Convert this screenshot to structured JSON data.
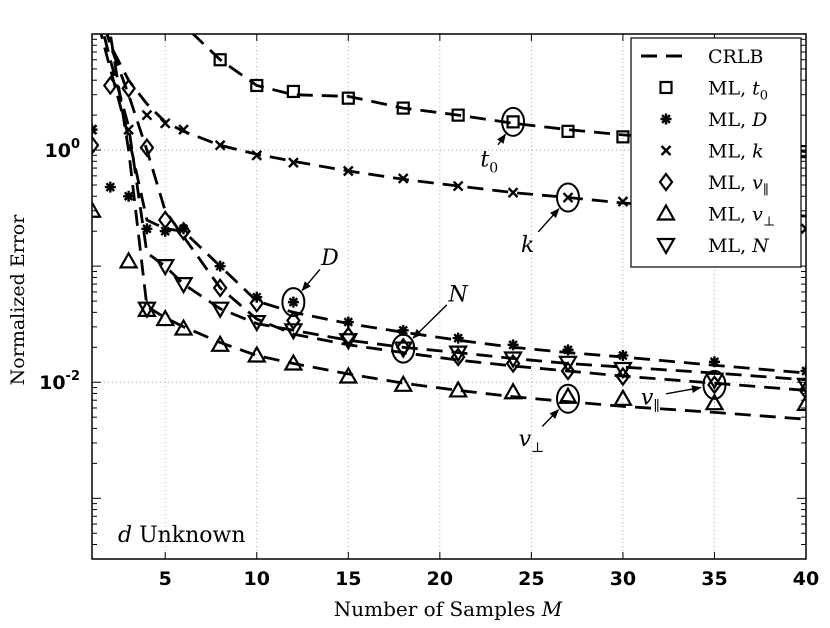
{
  "chart_data": {
    "type": "line",
    "xlabel": "Number of Samples ",
    "xlabel_var": "M",
    "ylabel": "Normalized Error",
    "xlim": [
      1,
      40
    ],
    "ylim": [
      0.0003,
      10
    ],
    "yscale": "log",
    "grid": "dotted",
    "legend_position": "top-right",
    "x_ticks": [
      5,
      10,
      15,
      20,
      25,
      30,
      35,
      40
    ],
    "y_ticks": [
      {
        "value": 1,
        "label_base": "10",
        "label_exp": "0"
      },
      {
        "value": 0.01,
        "label_base": "10",
        "label_exp": "-2"
      }
    ],
    "annotation_box": {
      "var": "d",
      "text": " Unknown"
    },
    "legend": [
      {
        "key": "crlb",
        "text": "CRLB"
      },
      {
        "key": "t0",
        "text": "ML, ",
        "var": "t",
        "sub": "0"
      },
      {
        "key": "D",
        "text": "ML, ",
        "var": "D",
        "sub": ""
      },
      {
        "key": "k",
        "text": "ML, ",
        "var": "k",
        "sub": ""
      },
      {
        "key": "vpar",
        "text": "ML, ",
        "var": "v",
        "sub": "∥"
      },
      {
        "key": "vperp",
        "text": "ML, ",
        "var": "v",
        "sub": "⊥"
      },
      {
        "key": "N",
        "text": "ML, ",
        "var": "N",
        "sub": ""
      }
    ],
    "crlb_series": [
      {
        "name": "t0",
        "x": [
          1,
          2,
          3,
          4,
          5,
          6,
          8,
          10,
          12,
          15,
          18,
          21,
          24,
          27,
          30,
          35,
          40
        ],
        "y": [
          300,
          100,
          50,
          30,
          20,
          12,
          6.0,
          3.6,
          3.0,
          2.9,
          2.3,
          2.0,
          1.7,
          1.5,
          1.35,
          1.18,
          0.97
        ]
      },
      {
        "name": "k",
        "x": [
          1,
          2,
          3,
          4,
          5,
          6,
          8,
          10,
          12,
          15,
          18,
          21,
          24,
          27,
          30,
          35,
          40
        ],
        "y": [
          30,
          8,
          4,
          2.5,
          1.75,
          1.45,
          1.1,
          0.92,
          0.8,
          0.66,
          0.56,
          0.49,
          0.43,
          0.39,
          0.35,
          0.31,
          0.27
        ]
      },
      {
        "name": "D",
        "x": [
          1,
          2,
          3,
          4,
          5,
          6,
          8,
          10,
          12,
          15,
          18,
          21,
          24,
          27,
          30,
          35,
          40
        ],
        "y": [
          20,
          5,
          1.3,
          0.25,
          0.21,
          0.2,
          0.1,
          0.05,
          0.04,
          0.032,
          0.027,
          0.023,
          0.02,
          0.018,
          0.0165,
          0.014,
          0.012
        ]
      },
      {
        "name": "N",
        "x": [
          1,
          2,
          3,
          4,
          5,
          6,
          8,
          10,
          12,
          15,
          18,
          21,
          24,
          27,
          30,
          35,
          40
        ],
        "y": [
          25,
          6,
          1.6,
          0.13,
          0.1,
          0.07,
          0.043,
          0.032,
          0.028,
          0.023,
          0.02,
          0.018,
          0.016,
          0.0145,
          0.0135,
          0.012,
          0.0105
        ]
      },
      {
        "name": "vpar",
        "x": [
          1,
          2,
          3,
          4,
          5,
          6,
          8,
          10,
          12,
          15,
          18,
          21,
          24,
          27,
          30,
          35,
          40
        ],
        "y": [
          30,
          8,
          3.0,
          1.0,
          0.3,
          0.18,
          0.065,
          0.035,
          0.026,
          0.021,
          0.018,
          0.0155,
          0.0138,
          0.0125,
          0.0113,
          0.0098,
          0.0085
        ]
      },
      {
        "name": "vperp",
        "x": [
          1,
          2,
          3,
          4,
          5,
          6,
          8,
          10,
          12,
          15,
          18,
          21,
          24,
          27,
          30,
          35,
          40
        ],
        "y": [
          40,
          10,
          1.0,
          0.045,
          0.036,
          0.03,
          0.022,
          0.017,
          0.0145,
          0.0118,
          0.0098,
          0.0085,
          0.0075,
          0.0068,
          0.0062,
          0.0055,
          0.0048
        ]
      }
    ],
    "ml_series": [
      {
        "name": "t0",
        "marker": "square",
        "x": [
          8,
          10,
          12,
          15,
          18,
          21,
          24,
          27,
          30,
          35,
          40
        ],
        "y": [
          6.0,
          3.6,
          3.2,
          2.8,
          2.3,
          2.0,
          1.75,
          1.45,
          1.3,
          1.1,
          0.97
        ]
      },
      {
        "name": "D",
        "marker": "asterisk",
        "x": [
          1,
          2,
          3,
          4,
          5,
          6,
          8,
          10,
          12,
          15,
          18,
          21,
          24,
          27,
          30,
          35,
          40
        ],
        "y": [
          1.5,
          0.48,
          0.4,
          0.21,
          0.2,
          0.21,
          0.1,
          0.054,
          0.049,
          0.033,
          0.028,
          0.024,
          0.021,
          0.019,
          0.017,
          0.015,
          0.0125
        ]
      },
      {
        "name": "k",
        "marker": "cross",
        "x": [
          1,
          3,
          4,
          5,
          6,
          8,
          10,
          12,
          15,
          18,
          21,
          24,
          27,
          30,
          35,
          40
        ],
        "y": [
          1.5,
          1.5,
          2.0,
          1.7,
          1.5,
          1.1,
          0.9,
          0.78,
          0.66,
          0.57,
          0.49,
          0.43,
          0.39,
          0.36,
          0.31,
          0.21
        ]
      },
      {
        "name": "vpar",
        "marker": "diamond",
        "x": [
          1,
          2,
          3,
          4,
          5,
          6,
          8,
          10,
          12,
          15,
          18,
          21,
          24,
          27,
          30,
          35,
          40
        ],
        "y": [
          1.1,
          3.6,
          3.4,
          1.05,
          0.25,
          0.2,
          0.065,
          0.048,
          0.034,
          0.025,
          0.02,
          0.0165,
          0.0145,
          0.0125,
          0.0112,
          0.0095,
          0.0085
        ]
      },
      {
        "name": "vperp",
        "marker": "triangle-up",
        "x": [
          1,
          3,
          4,
          5,
          6,
          8,
          10,
          12,
          15,
          18,
          21,
          24,
          27,
          30,
          35,
          40
        ],
        "y": [
          0.3,
          0.11,
          0.042,
          0.035,
          0.029,
          0.021,
          0.017,
          0.0145,
          0.0112,
          0.0095,
          0.0085,
          0.0082,
          0.0075,
          0.0072,
          0.0066,
          0.0065
        ]
      },
      {
        "name": "N",
        "marker": "triangle-down",
        "x": [
          4,
          5,
          6,
          8,
          10,
          12,
          15,
          18,
          21,
          24,
          27,
          30,
          35,
          40
        ],
        "y": [
          0.043,
          0.1,
          0.07,
          0.043,
          0.033,
          0.028,
          0.023,
          0.0195,
          0.018,
          0.016,
          0.0147,
          0.013,
          0.0105,
          0.0095
        ]
      }
    ],
    "annotations": [
      {
        "key": "t0",
        "var": "t",
        "sub": "0",
        "circle": {
          "x": 24,
          "y": 1.75
        },
        "label": {
          "x": 22.7,
          "y": 0.85
        }
      },
      {
        "key": "k",
        "var": "k",
        "sub": "",
        "circle": {
          "x": 27,
          "y": 0.39
        },
        "label": {
          "x": 24.8,
          "y": 0.155
        }
      },
      {
        "key": "D",
        "var": "D",
        "sub": "",
        "circle": {
          "x": 12,
          "y": 0.049
        },
        "label": {
          "x": 14.0,
          "y": 0.12
        }
      },
      {
        "key": "N",
        "var": "N",
        "sub": "",
        "circle": {
          "x": 18,
          "y": 0.0195
        },
        "label": {
          "x": 21.0,
          "y": 0.058
        }
      },
      {
        "key": "vpar",
        "var": "v",
        "sub": "∥",
        "circle": {
          "x": 35,
          "y": 0.0095
        },
        "label": {
          "x": 31.5,
          "y": 0.0075
        }
      },
      {
        "key": "vperp",
        "var": "v",
        "sub": "⊥",
        "circle": {
          "x": 27,
          "y": 0.0072
        },
        "label": {
          "x": 25.0,
          "y": 0.0033
        }
      }
    ]
  }
}
